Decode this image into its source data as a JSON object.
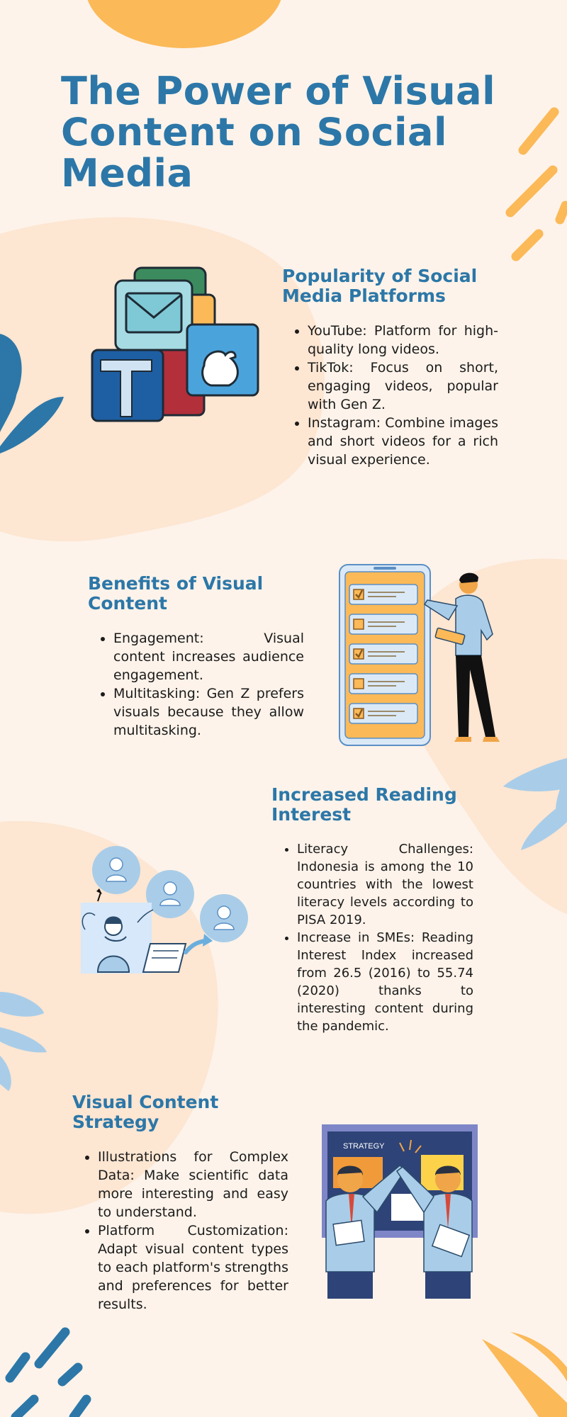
{
  "title": "The Power of Visual Content on Social Media",
  "sections": [
    {
      "heading": "Popularity of Social Media Platforms",
      "items": [
        "YouTube: Platform for high-quality long videos.",
        "TikTok: Focus on short, engaging videos, popular with Gen Z.",
        "Instagram: Combine images and short videos for a rich visual experience."
      ]
    },
    {
      "heading": "Benefits of Visual Content",
      "items": [
        "Engagement: Visual content increases audience engagement.",
        "Multitasking: Gen Z prefers visuals because they allow multitasking."
      ]
    },
    {
      "heading": "Increased Reading Interest",
      "items": [
        "Literacy Challenges: Indonesia is among the 10 countries with the lowest literacy levels according to PISA 2019.",
        "Increase in SMEs: Reading Interest Index increased from 26.5 (2016) to 55.74 (2020) thanks to interesting content during the pandemic."
      ]
    },
    {
      "heading": "Visual Content Strategy",
      "items": [
        "Illustrations for Complex Data: Make scientific data more interesting and easy to understand.",
        "Platform Customization: Adapt visual content types to each platform's strengths and preferences for better results."
      ]
    }
  ],
  "strategy_board_label": "STRATEGY",
  "colors": {
    "background": "#fdf3ea",
    "blob": "#fde6d2",
    "heading": "#2c77a8",
    "accent_yellow": "#fbb958",
    "accent_blue": "#2c77a8",
    "leaf_blue": "#a9cde8"
  }
}
